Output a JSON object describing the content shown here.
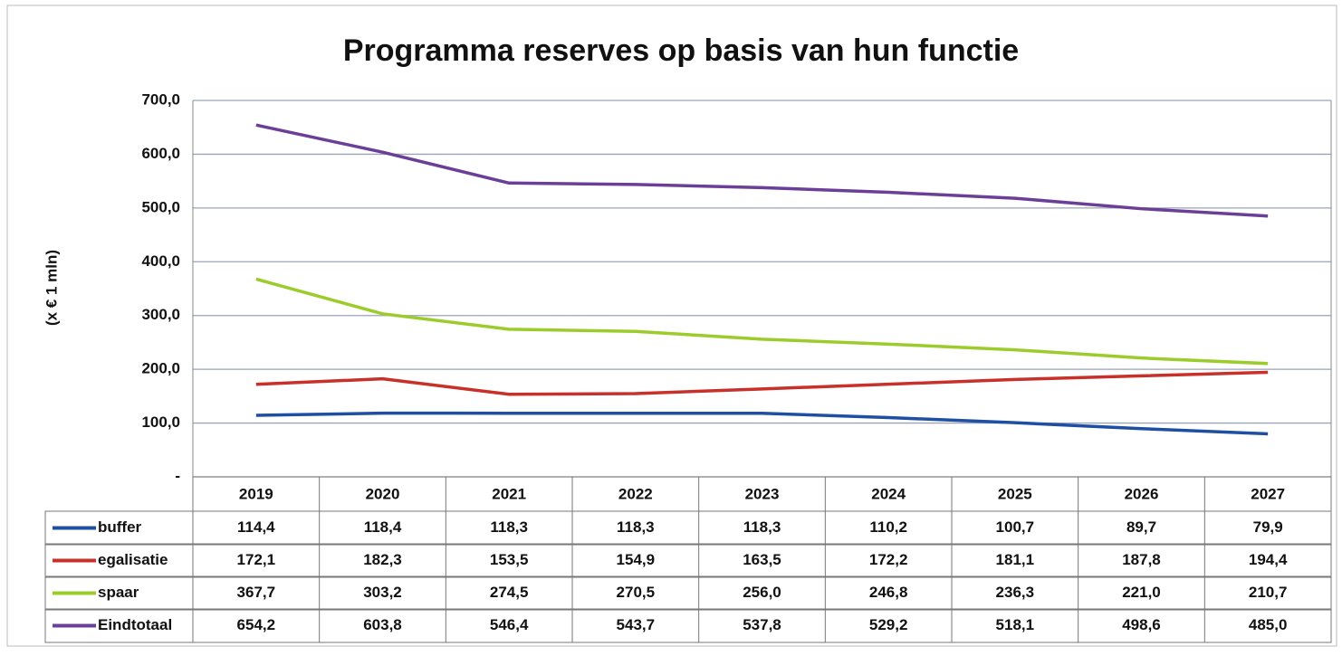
{
  "chart_data": {
    "type": "line",
    "title": "Programma reserves op basis van hun functie",
    "y_label": "(x € 1 mln)",
    "categories": [
      "2019",
      "2020",
      "2021",
      "2022",
      "2023",
      "2024",
      "2025",
      "2026",
      "2027"
    ],
    "series": [
      {
        "name": "buffer",
        "color": "#1f4fa3",
        "values": [
          114.4,
          118.4,
          118.3,
          118.3,
          118.3,
          110.2,
          100.7,
          89.7,
          79.9
        ],
        "value_labels": [
          "114,4",
          "118,4",
          "118,3",
          "118,3",
          "118,3",
          "110,2",
          "100,7",
          "89,7",
          "79,9"
        ]
      },
      {
        "name": "egalisatie",
        "color": "#c8302a",
        "values": [
          172.1,
          182.3,
          153.5,
          154.9,
          163.5,
          172.2,
          181.1,
          187.8,
          194.4
        ],
        "value_labels": [
          "172,1",
          "182,3",
          "153,5",
          "154,9",
          "163,5",
          "172,2",
          "181,1",
          "187,8",
          "194,4"
        ]
      },
      {
        "name": "spaar",
        "color": "#9ccc2c",
        "values": [
          367.7,
          303.2,
          274.5,
          270.5,
          256.0,
          246.8,
          236.3,
          221.0,
          210.7
        ],
        "value_labels": [
          "367,7",
          "303,2",
          "274,5",
          "270,5",
          "256,0",
          "246,8",
          "236,3",
          "221,0",
          "210,7"
        ]
      },
      {
        "name": "Eindtotaal",
        "color": "#6b3f98",
        "values": [
          654.2,
          603.8,
          546.4,
          543.7,
          537.8,
          529.2,
          518.1,
          498.6,
          485.0
        ],
        "value_labels": [
          "654,2",
          "603,8",
          "546,4",
          "543,7",
          "537,8",
          "529,2",
          "518,1",
          "498,6",
          "485,0"
        ]
      }
    ],
    "ylim": [
      0,
      700
    ],
    "yticks": [
      {
        "value": 0,
        "label": "-"
      },
      {
        "value": 100,
        "label": "100,0"
      },
      {
        "value": 200,
        "label": "200,0"
      },
      {
        "value": 300,
        "label": "300,0"
      },
      {
        "value": 400,
        "label": "400,0"
      },
      {
        "value": 500,
        "label": "500,0"
      },
      {
        "value": 600,
        "label": "600,0"
      },
      {
        "value": 700,
        "label": "700,0"
      }
    ],
    "grid": true
  }
}
